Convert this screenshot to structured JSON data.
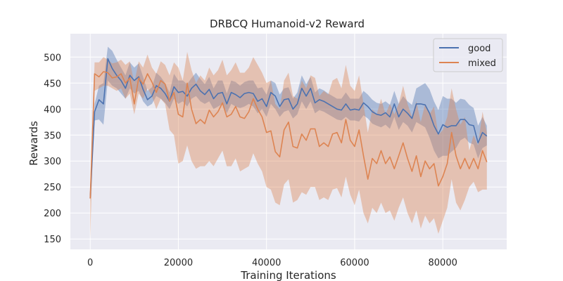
{
  "chart_data": {
    "type": "line",
    "title": "DRBCQ Humanoid-v2 Reward",
    "xlabel": "Training Iterations",
    "ylabel": "Rewards",
    "xlim": [
      -4500,
      94500
    ],
    "ylim": [
      130,
      545
    ],
    "xticks": [
      0,
      20000,
      40000,
      60000,
      80000
    ],
    "xtick_labels": [
      "0",
      "20000",
      "40000",
      "60000",
      "80000"
    ],
    "yticks": [
      150,
      200,
      250,
      300,
      350,
      400,
      450,
      500
    ],
    "ytick_labels": [
      "150",
      "200",
      "250",
      "300",
      "350",
      "400",
      "450",
      "500"
    ],
    "grid": true,
    "legend_position": "top-right",
    "x": [
      0,
      1000,
      2000,
      3000,
      4000,
      5000,
      6000,
      7000,
      8000,
      9000,
      10000,
      11000,
      12000,
      13000,
      14000,
      15000,
      16000,
      17000,
      18000,
      19000,
      20000,
      21000,
      22000,
      23000,
      24000,
      25000,
      26000,
      27000,
      28000,
      29000,
      30000,
      31000,
      32000,
      33000,
      34000,
      35000,
      36000,
      37000,
      38000,
      39000,
      40000,
      41000,
      42000,
      43000,
      44000,
      45000,
      46000,
      47000,
      48000,
      49000,
      50000,
      51000,
      52000,
      53000,
      54000,
      55000,
      56000,
      57000,
      58000,
      59000,
      60000,
      61000,
      62000,
      63000,
      64000,
      65000,
      66000,
      67000,
      68000,
      69000,
      70000,
      71000,
      72000,
      73000,
      74000,
      75000,
      76000,
      77000,
      78000,
      79000,
      80000,
      81000,
      82000,
      83000,
      84000,
      85000,
      86000,
      87000,
      88000,
      89000,
      90000
    ],
    "series": [
      {
        "name": "good",
        "color": "#4c72b0",
        "values": [
          228,
          395,
          418,
          410,
          497,
          478,
          465,
          455,
          440,
          465,
          455,
          462,
          438,
          418,
          425,
          445,
          440,
          430,
          415,
          443,
          432,
          434,
          425,
          440,
          448,
          435,
          428,
          438,
          420,
          430,
          432,
          410,
          432,
          428,
          422,
          430,
          432,
          430,
          415,
          420,
          405,
          432,
          425,
          405,
          418,
          420,
          400,
          410,
          440,
          425,
          440,
          412,
          418,
          415,
          410,
          405,
          400,
          398,
          410,
          398,
          400,
          398,
          412,
          405,
          395,
          390,
          388,
          393,
          385,
          410,
          385,
          400,
          392,
          382,
          410,
          410,
          408,
          392,
          368,
          352,
          370,
          365,
          368,
          368,
          380,
          380,
          370,
          368,
          335,
          355,
          348
        ],
        "lower": [
          222,
          378,
          380,
          370,
          455,
          445,
          440,
          430,
          420,
          440,
          430,
          435,
          415,
          405,
          410,
          425,
          420,
          412,
          400,
          420,
          410,
          415,
          405,
          420,
          425,
          415,
          410,
          415,
          400,
          405,
          410,
          392,
          410,
          405,
          402,
          405,
          410,
          405,
          392,
          400,
          385,
          410,
          400,
          385,
          395,
          398,
          382,
          390,
          415,
          400,
          415,
          392,
          398,
          395,
          390,
          385,
          380,
          378,
          385,
          378,
          378,
          376,
          388,
          382,
          372,
          368,
          365,
          370,
          362,
          385,
          360,
          375,
          368,
          355,
          375,
          370,
          365,
          345,
          320,
          305,
          310,
          310,
          318,
          325,
          340,
          345,
          335,
          332,
          305,
          325,
          330
        ],
        "upper": [
          235,
          410,
          445,
          450,
          520,
          512,
          495,
          480,
          465,
          490,
          480,
          488,
          462,
          435,
          442,
          470,
          462,
          450,
          432,
          468,
          455,
          455,
          448,
          460,
          470,
          458,
          448,
          462,
          440,
          455,
          455,
          430,
          455,
          452,
          445,
          452,
          455,
          455,
          440,
          442,
          428,
          455,
          450,
          428,
          440,
          442,
          420,
          432,
          465,
          448,
          462,
          432,
          440,
          436,
          430,
          425,
          420,
          420,
          432,
          420,
          420,
          420,
          435,
          428,
          418,
          412,
          410,
          415,
          408,
          435,
          410,
          425,
          415,
          408,
          440,
          445,
          450,
          438,
          415,
          398,
          425,
          420,
          420,
          412,
          420,
          418,
          408,
          402,
          368,
          385,
          368
        ]
      },
      {
        "name": "mixed",
        "color": "#dd8452",
        "values": [
          228,
          468,
          462,
          472,
          470,
          460,
          462,
          468,
          450,
          460,
          410,
          460,
          448,
          468,
          452,
          432,
          455,
          448,
          415,
          432,
          390,
          385,
          450,
          400,
          372,
          380,
          372,
          398,
          385,
          395,
          412,
          385,
          390,
          405,
          385,
          382,
          395,
          420,
          400,
          385,
          355,
          358,
          318,
          308,
          360,
          375,
          328,
          325,
          352,
          340,
          362,
          362,
          328,
          335,
          328,
          352,
          355,
          335,
          380,
          340,
          328,
          360,
          310,
          265,
          305,
          295,
          320,
          295,
          308,
          285,
          310,
          335,
          305,
          280,
          310,
          270,
          300,
          285,
          295,
          252,
          270,
          295,
          355,
          310,
          285,
          305,
          285,
          305,
          285,
          320,
          298
        ],
        "lower": [
          150,
          435,
          440,
          445,
          445,
          440,
          435,
          440,
          420,
          430,
          390,
          430,
          420,
          440,
          425,
          400,
          420,
          410,
          360,
          350,
          295,
          300,
          330,
          300,
          285,
          290,
          290,
          300,
          290,
          305,
          320,
          290,
          290,
          305,
          280,
          285,
          290,
          315,
          295,
          280,
          250,
          245,
          220,
          215,
          255,
          265,
          220,
          225,
          240,
          235,
          250,
          250,
          225,
          230,
          225,
          245,
          248,
          230,
          270,
          235,
          215,
          245,
          200,
          180,
          210,
          200,
          220,
          200,
          205,
          185,
          210,
          230,
          200,
          180,
          205,
          170,
          195,
          180,
          190,
          160,
          185,
          210,
          265,
          220,
          205,
          225,
          250,
          260,
          240,
          245,
          245
        ],
        "upper": [
          250,
          490,
          490,
          500,
          495,
          488,
          490,
          495,
          485,
          492,
          450,
          492,
          480,
          505,
          480,
          468,
          492,
          485,
          465,
          490,
          480,
          455,
          510,
          475,
          450,
          465,
          455,
          480,
          465,
          475,
          495,
          465,
          475,
          490,
          470,
          470,
          480,
          500,
          485,
          470,
          450,
          455,
          410,
          400,
          455,
          470,
          425,
          420,
          455,
          440,
          465,
          460,
          425,
          435,
          428,
          455,
          460,
          440,
          485,
          445,
          435,
          465,
          410,
          355,
          400,
          390,
          420,
          390,
          410,
          390,
          410,
          445,
          410,
          385,
          415,
          375,
          410,
          390,
          405,
          350,
          360,
          385,
          440,
          400,
          370,
          385,
          320,
          350,
          330,
          395,
          355
        ]
      }
    ]
  }
}
